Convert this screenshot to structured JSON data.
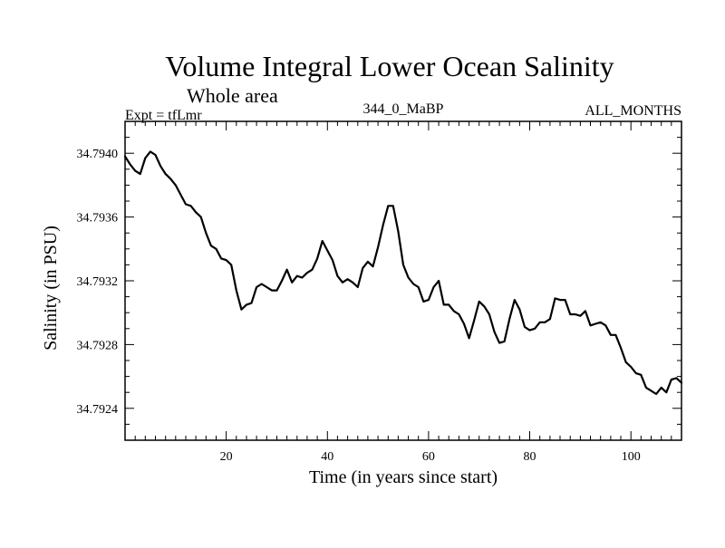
{
  "chart_data": {
    "type": "line",
    "title": "Volume Integral Lower Ocean Salinity",
    "subtitle": "Whole area",
    "left_label": "Expt = tfLmr",
    "center_label": "344_0_MaBP",
    "right_label": "ALL_MONTHS",
    "xlabel": "Time (in years since start)",
    "ylabel": "Salinity (in PSU)",
    "xlim": [
      0,
      110
    ],
    "ylim": [
      34.7922,
      34.7942
    ],
    "xticks": [
      20,
      40,
      60,
      80,
      100
    ],
    "xtick_labels": [
      "20",
      "40",
      "60",
      "80",
      "100"
    ],
    "yticks": [
      34.7924,
      34.7928,
      34.7932,
      34.7936,
      34.794
    ],
    "ytick_labels": [
      "34.7924",
      "34.7928",
      "34.7932",
      "34.7936",
      "34.7940"
    ],
    "line_color": "#000000",
    "series": [
      {
        "name": "salinity",
        "x": [
          0,
          1,
          2,
          3,
          4,
          5,
          6,
          7,
          8,
          9,
          10,
          11,
          12,
          13,
          14,
          15,
          16,
          17,
          18,
          19,
          20,
          21,
          22,
          23,
          24,
          25,
          26,
          27,
          28,
          29,
          30,
          31,
          32,
          33,
          34,
          35,
          36,
          37,
          38,
          39,
          40,
          41,
          42,
          43,
          44,
          45,
          46,
          47,
          48,
          49,
          50,
          51,
          52,
          53,
          54,
          55,
          56,
          57,
          58,
          59,
          60,
          61,
          62,
          63,
          64,
          65,
          66,
          67,
          68,
          69,
          70,
          71,
          72,
          73,
          74,
          75,
          76,
          77,
          78,
          79,
          80,
          81,
          82,
          83,
          84,
          85,
          86,
          87,
          88,
          89,
          90,
          91,
          92,
          93,
          94,
          95,
          96,
          97,
          98,
          99,
          100,
          101,
          102,
          103,
          104,
          105,
          106,
          107,
          108,
          109,
          110
        ],
        "values": [
          34.79398,
          34.79393,
          34.79389,
          34.79387,
          34.79397,
          34.79401,
          34.79399,
          34.79392,
          34.79387,
          34.79384,
          34.7938,
          34.79374,
          34.79368,
          34.79367,
          34.79363,
          34.7936,
          34.7935,
          34.79342,
          34.7934,
          34.79334,
          34.79333,
          34.7933,
          34.79314,
          34.79302,
          34.79305,
          34.79306,
          34.79316,
          34.79318,
          34.79316,
          34.79314,
          34.79314,
          34.7932,
          34.79327,
          34.79319,
          34.79323,
          34.79322,
          34.79325,
          34.79327,
          34.79334,
          34.79345,
          34.79339,
          34.79333,
          34.79323,
          34.79319,
          34.79321,
          34.79319,
          34.79316,
          34.79328,
          34.79332,
          34.79329,
          34.79341,
          34.79355,
          34.79367,
          34.79367,
          34.79351,
          34.7933,
          34.79322,
          34.79318,
          34.79316,
          34.79307,
          34.79308,
          34.79316,
          34.7932,
          34.79305,
          34.79305,
          34.79301,
          34.79299,
          34.79293,
          34.79284,
          34.79295,
          34.79307,
          34.79304,
          34.79299,
          34.79288,
          34.79281,
          34.79282,
          34.79296,
          34.79308,
          34.79302,
          34.79291,
          34.79289,
          34.7929,
          34.79294,
          34.79294,
          34.79296,
          34.79309,
          34.79308,
          34.79308,
          34.79299,
          34.79299,
          34.79298,
          34.79301,
          34.79292,
          34.79293,
          34.79294,
          34.79292,
          34.79286,
          34.79286,
          34.79278,
          34.79269,
          34.79266,
          34.79262,
          34.79261,
          34.79253,
          34.79251,
          34.79249,
          34.79253,
          34.7925,
          34.79258,
          34.79259,
          34.79256
        ]
      }
    ]
  }
}
